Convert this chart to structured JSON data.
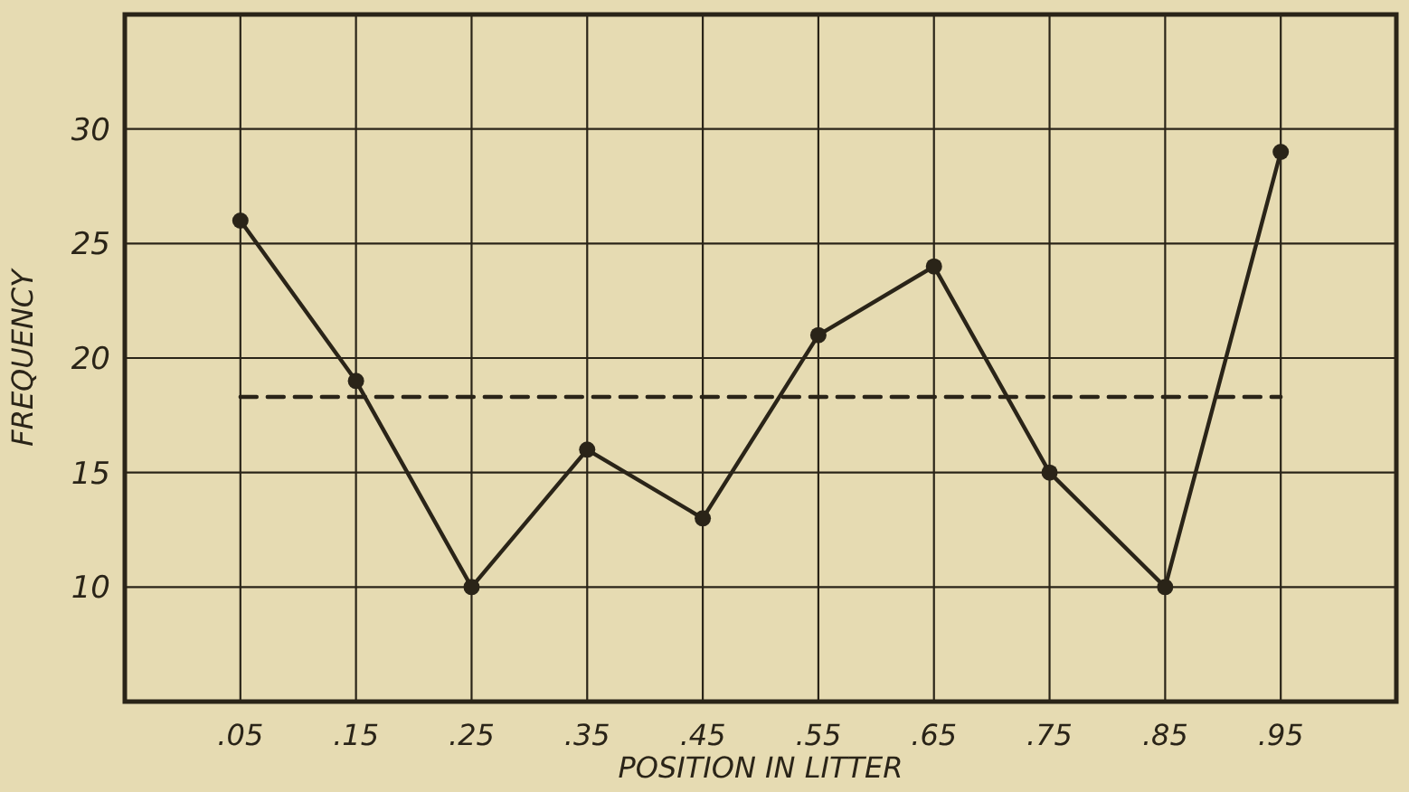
{
  "chart_data": {
    "type": "line",
    "xlabel": "POSITION IN LITTER",
    "ylabel": "FREQUENCY",
    "xlim": [
      -0.05,
      1.05
    ],
    "ylim": [
      5,
      35
    ],
    "xticks": [
      {
        "value": 0.05,
        "label": ".05"
      },
      {
        "value": 0.15,
        "label": ".15"
      },
      {
        "value": 0.25,
        "label": ".25"
      },
      {
        "value": 0.35,
        "label": ".35"
      },
      {
        "value": 0.45,
        "label": ".45"
      },
      {
        "value": 0.55,
        "label": ".55"
      },
      {
        "value": 0.65,
        "label": ".65"
      },
      {
        "value": 0.75,
        "label": ".75"
      },
      {
        "value": 0.85,
        "label": ".85"
      },
      {
        "value": 0.95,
        "label": ".95"
      }
    ],
    "yticks": [
      10,
      15,
      20,
      25,
      30
    ],
    "grid": true,
    "series": [
      {
        "color": "#2a2418",
        "x": [
          0.05,
          0.15,
          0.25,
          0.35,
          0.45,
          0.55,
          0.65,
          0.75,
          0.85,
          0.95
        ],
        "values": [
          26,
          19,
          10,
          16,
          13,
          21,
          24,
          15,
          10,
          29
        ],
        "marker": "circle",
        "line_style": "solid"
      },
      {
        "color": "#2a2418",
        "x": [
          0.05,
          0.95
        ],
        "values": [
          18.3,
          18.3
        ],
        "marker": "none",
        "line_style": "dashed"
      }
    ]
  }
}
